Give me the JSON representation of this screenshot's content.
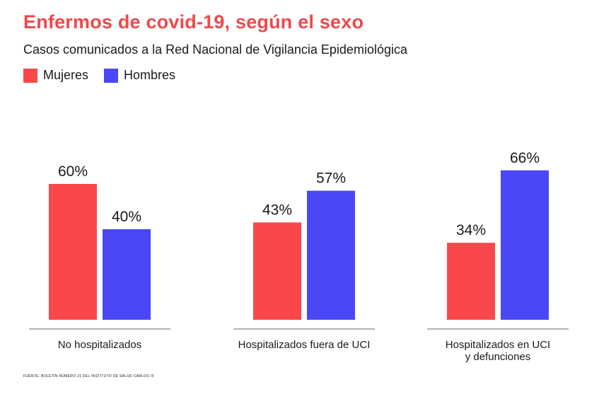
{
  "title": "Enfermos de covid-19, según el sexo",
  "subtitle": "Casos comunicados a la Red Nacional de Vigilancia Epidemiológica",
  "source": "FUENTE: BOLETÍN NÚMERO 21 DEL INSTITUTO DE SALUD CARLOS III",
  "colors": {
    "mujeres": "#f9474c",
    "hombres": "#4a47f6",
    "axis": "#9a9a9a",
    "title": "#f0484c"
  },
  "chart_data": {
    "type": "bar",
    "title": "Enfermos de covid-19, según el sexo",
    "subtitle": "Casos comunicados a la Red Nacional de Vigilancia Epidemiológica",
    "categories": [
      [
        "No hospitalizados"
      ],
      [
        "Hospitalizados fuera de UCI"
      ],
      [
        "Hospitalizados en UCI",
        "y defunciones"
      ]
    ],
    "series": [
      {
        "name": "Mujeres",
        "values": [
          60,
          43,
          34
        ],
        "labels": [
          "60%",
          "43%",
          "34%"
        ]
      },
      {
        "name": "Hombres",
        "values": [
          40,
          57,
          66
        ],
        "labels": [
          "40%",
          "57%",
          "66%"
        ]
      }
    ],
    "ylim": [
      0,
      100
    ],
    "unit": "%",
    "legend_position": "top-left",
    "grid": false
  }
}
